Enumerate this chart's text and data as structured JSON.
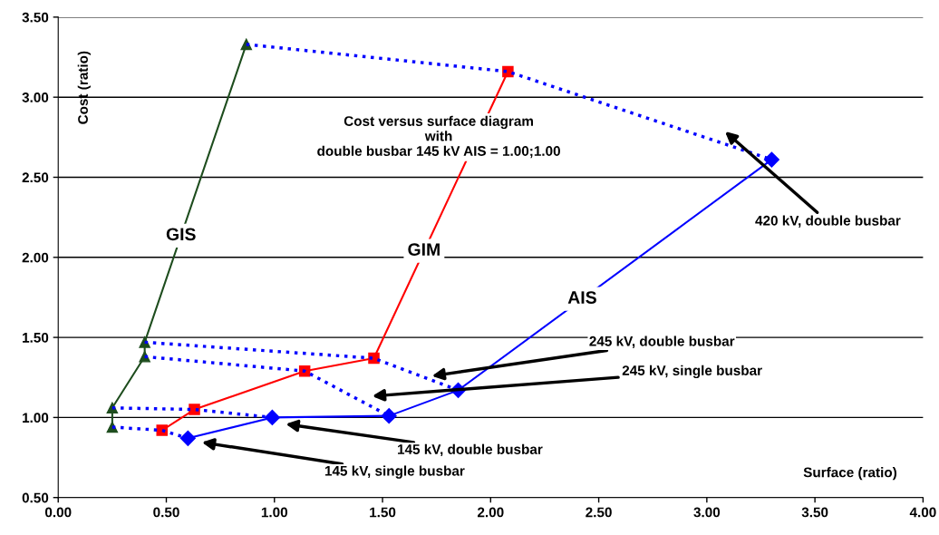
{
  "chart_data": {
    "type": "line",
    "ylabel": "Cost (ratio)",
    "xlabel": "Surface (ratio)",
    "xlim": [
      0,
      4
    ],
    "ylim": [
      0.5,
      3.5
    ],
    "xticks": [
      {
        "value": 0,
        "label": "0.00"
      },
      {
        "value": 0.5,
        "label": "0.50"
      },
      {
        "value": 1,
        "label": "1.00"
      },
      {
        "value": 1.5,
        "label": "1.50"
      },
      {
        "value": 2,
        "label": "2.00"
      },
      {
        "value": 2.5,
        "label": "2.50"
      },
      {
        "value": 3,
        "label": "3.00"
      },
      {
        "value": 3.5,
        "label": "3.50"
      },
      {
        "value": 4,
        "label": "4.00"
      }
    ],
    "yticks": [
      {
        "value": 0.5,
        "label": "0.50"
      },
      {
        "value": 1,
        "label": "1.00"
      },
      {
        "value": 1.5,
        "label": "1.50"
      },
      {
        "value": 2,
        "label": "2.00"
      },
      {
        "value": 2.5,
        "label": "2.50"
      },
      {
        "value": 3,
        "label": "3.00"
      },
      {
        "value": 3.5,
        "label": "3.50"
      }
    ],
    "grid": "y",
    "series": [
      {
        "name": "GIS",
        "color": "#1e4d1e",
        "marker": "triangle",
        "line_style": "solid",
        "x": [
          0.25,
          0.25,
          0.4,
          0.4,
          0.87
        ],
        "values": [
          0.94,
          1.06,
          1.38,
          1.47,
          3.33
        ]
      },
      {
        "name": "GIM",
        "color": "#ff0000",
        "marker": "square",
        "line_style": "solid",
        "x": [
          0.48,
          0.63,
          1.14,
          1.46,
          2.08
        ],
        "values": [
          0.92,
          1.05,
          1.29,
          1.37,
          3.16
        ]
      },
      {
        "name": "AIS",
        "color": "#0000ff",
        "marker": "diamond",
        "line_style": "solid",
        "x": [
          0.6,
          0.99,
          1.53,
          1.85,
          3.3
        ],
        "values": [
          0.87,
          1.0,
          1.01,
          1.17,
          2.61
        ]
      },
      {
        "color": "#0000ff",
        "marker": "none",
        "line_style": "dotted",
        "x": [
          0.25,
          0.48,
          0.6
        ],
        "values": [
          0.94,
          0.92,
          0.87
        ]
      },
      {
        "color": "#0000ff",
        "marker": "none",
        "line_style": "dotted",
        "x": [
          0.25,
          0.63,
          0.99
        ],
        "values": [
          1.06,
          1.05,
          1.0
        ]
      },
      {
        "color": "#0000ff",
        "marker": "none",
        "line_style": "dotted",
        "x": [
          0.4,
          1.14,
          1.53
        ],
        "values": [
          1.38,
          1.29,
          1.01
        ]
      },
      {
        "color": "#0000ff",
        "marker": "none",
        "line_style": "dotted",
        "x": [
          0.4,
          1.46,
          1.85
        ],
        "values": [
          1.47,
          1.37,
          1.17
        ]
      },
      {
        "color": "#0000ff",
        "marker": "none",
        "line_style": "dotted",
        "x": [
          0.87,
          2.08,
          3.3
        ],
        "values": [
          3.33,
          3.16,
          2.61
        ]
      }
    ],
    "annotations": [
      "Cost versus surface diagram\nwith\ndouble busbar 145 kV AIS = 1.00;1.00",
      "420 kV, double busbar",
      "245 kV, double busbar",
      "245 kV, single busbar",
      "145 kV, double busbar",
      "145 kV, single busbar"
    ]
  }
}
